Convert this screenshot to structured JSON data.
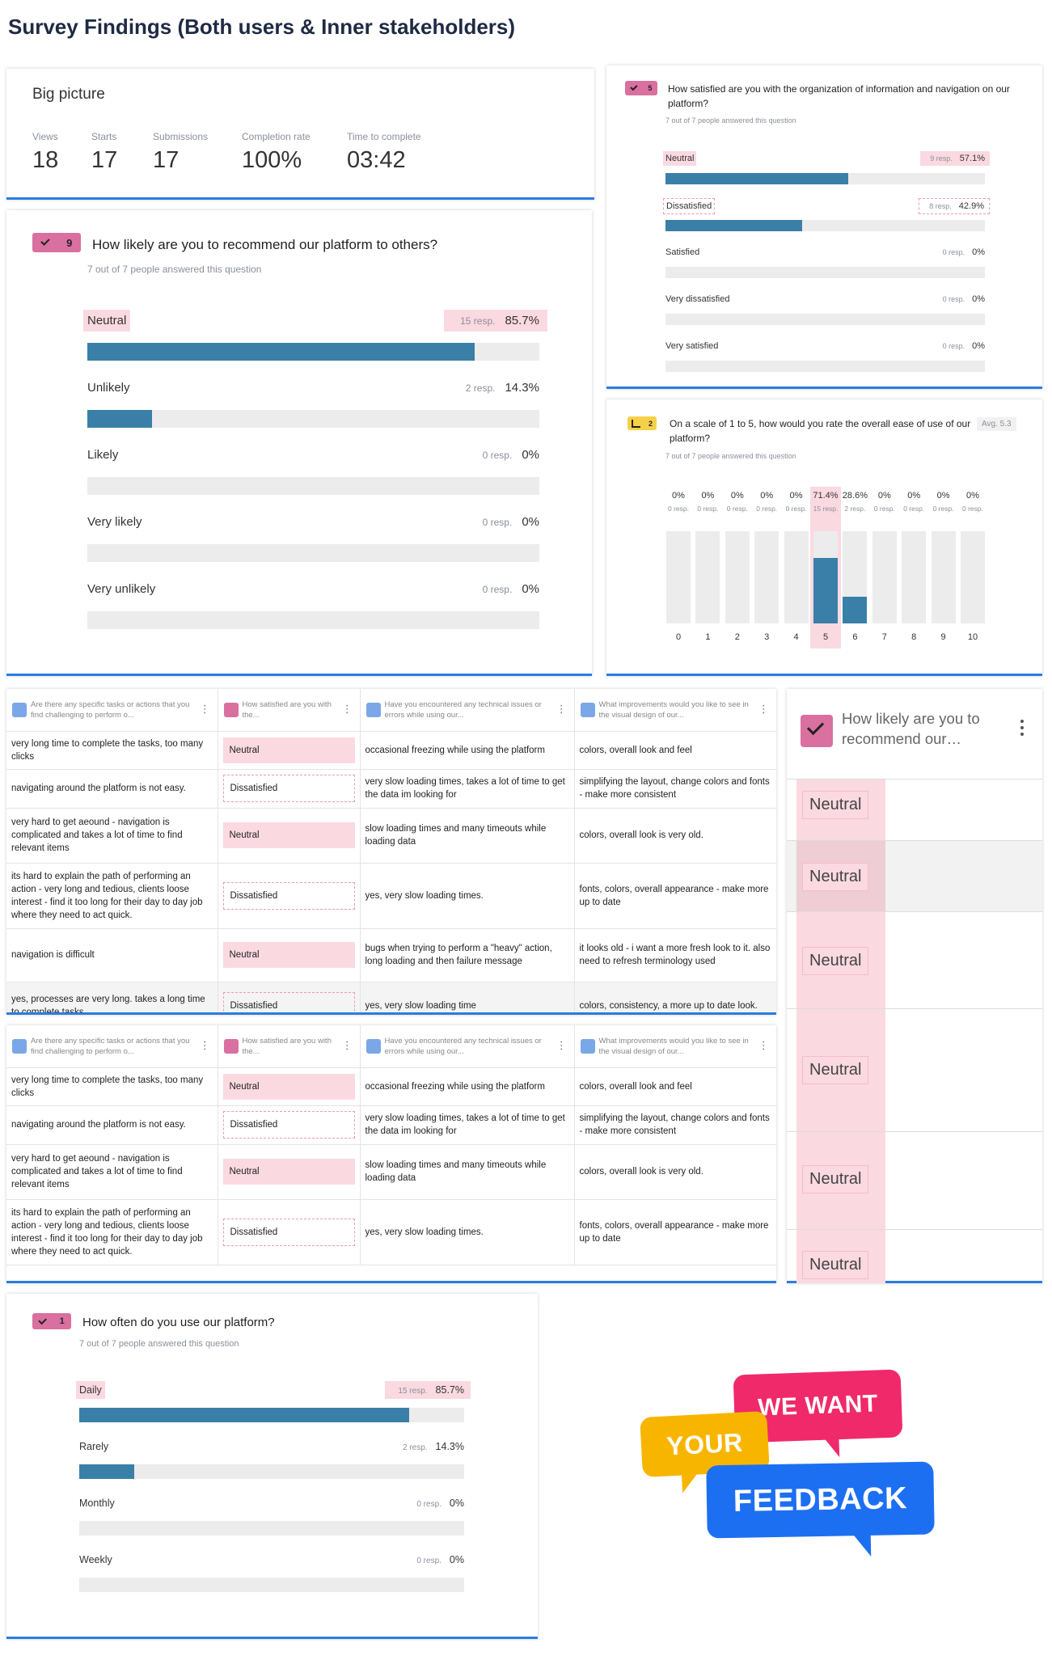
{
  "page_title": "Survey Findings (Both users & Inner stakeholders)",
  "big_picture": {
    "title": "Big picture",
    "stats": [
      {
        "label": "Views",
        "value": "18"
      },
      {
        "label": "Starts",
        "value": "17"
      },
      {
        "label": "Submissions",
        "value": "17"
      },
      {
        "label": "Completion rate",
        "value": "100%"
      },
      {
        "label": "Time to complete",
        "value": "03:42"
      }
    ]
  },
  "questions": [
    {
      "number": "9",
      "title": "How likely are you to recommend our platform to others?",
      "answered": "7 out of 7 people answered this question",
      "options": [
        {
          "label": "Neutral",
          "resp": "15 resp.",
          "percent_label": "85.7%",
          "percent": 85.7,
          "highlight": "fill"
        },
        {
          "label": "Unlikely",
          "resp": "2 resp.",
          "percent_label": "14.3%",
          "percent": 14.3
        },
        {
          "label": "Likely",
          "resp": "0 resp.",
          "percent_label": "0%",
          "percent": 0
        },
        {
          "label": "Very likely",
          "resp": "0 resp.",
          "percent_label": "0%",
          "percent": 0
        },
        {
          "label": "Very unlikely",
          "resp": "0 resp.",
          "percent_label": "0%",
          "percent": 0
        }
      ]
    },
    {
      "number": "5",
      "title": "How satisfied are you with the organization of information and navigation on our platform?",
      "answered": "7 out of 7 people answered this question",
      "options": [
        {
          "label": "Neutral",
          "resp": "9 resp.",
          "percent_label": "57.1%",
          "percent": 57.1,
          "highlight": "fill"
        },
        {
          "label": "Dissatisfied",
          "resp": "8 resp.",
          "percent_label": "42.9%",
          "percent": 42.9,
          "highlight": "dashed"
        },
        {
          "label": "Satisfied",
          "resp": "0 resp.",
          "percent_label": "0%",
          "percent": 0
        },
        {
          "label": "Very dissatisfied",
          "resp": "0 resp.",
          "percent_label": "0%",
          "percent": 0
        },
        {
          "label": "Very satisfied",
          "resp": "0 resp.",
          "percent_label": "0%",
          "percent": 0
        }
      ]
    },
    {
      "number": "1",
      "title": "How often do you use our platform?",
      "answered": "7 out of 7 people answered this question",
      "options": [
        {
          "label": "Daily",
          "resp": "15 resp.",
          "percent_label": "85.7%",
          "percent": 85.7,
          "highlight": "fill"
        },
        {
          "label": "Rarely",
          "resp": "2 resp.",
          "percent_label": "14.3%",
          "percent": 14.3
        },
        {
          "label": "Monthly",
          "resp": "0 resp.",
          "percent_label": "0%",
          "percent": 0
        },
        {
          "label": "Weekly",
          "resp": "0 resp.",
          "percent_label": "0%",
          "percent": 0
        }
      ]
    }
  ],
  "scale_question": {
    "number": "2",
    "title": "On a scale of 1 to 5, how would you rate the overall ease of use of our platform?",
    "avg": "Avg. 5.3",
    "answered": "7 out of 7 people answered this question",
    "columns": [
      {
        "label": "0",
        "percent_label": "0%",
        "percent": 0,
        "resp": "0 resp."
      },
      {
        "label": "1",
        "percent_label": "0%",
        "percent": 0,
        "resp": "0 resp."
      },
      {
        "label": "2",
        "percent_label": "0%",
        "percent": 0,
        "resp": "0 resp."
      },
      {
        "label": "3",
        "percent_label": "0%",
        "percent": 0,
        "resp": "0 resp."
      },
      {
        "label": "4",
        "percent_label": "0%",
        "percent": 0,
        "resp": "0 resp."
      },
      {
        "label": "5",
        "percent_label": "71.4%",
        "percent": 71.4,
        "resp": "15 resp.",
        "highlight": "fill"
      },
      {
        "label": "6",
        "percent_label": "28.6%",
        "percent": 28.6,
        "resp": "2 resp."
      },
      {
        "label": "7",
        "percent_label": "0%",
        "percent": 0,
        "resp": "0 resp."
      },
      {
        "label": "8",
        "percent_label": "0%",
        "percent": 0,
        "resp": "0 resp."
      },
      {
        "label": "9",
        "percent_label": "0%",
        "percent": 0,
        "resp": "0 resp."
      },
      {
        "label": "10",
        "percent_label": "0%",
        "percent": 0,
        "resp": "0 resp."
      }
    ]
  },
  "tables": [
    {
      "headers": [
        "Are there any specific tasks or actions that you find challenging to perform o...",
        "How satisfied are you with the...",
        "Have you encountered any technical issues or errors while using our...",
        "What improvements would you like to see in the visual design of our..."
      ],
      "row_highlights": [
        "fill",
        "dashed",
        "fill",
        "dashed",
        "fill",
        "dashed"
      ],
      "rows": [
        [
          "very long time to complete the tasks, too many clicks",
          "Neutral",
          "occasional freezing while using the platform",
          "colors, overall look and feel"
        ],
        [
          "navigating around the platform is not easy.",
          "Dissatisfied",
          "very slow loading times, takes a lot of time to get the data im looking for",
          "simplifying the layout, change colors and fonts - make more consistent"
        ],
        [
          "very hard to get aeound - navigation is complicated and takes a lot of time to find relevant items",
          "Neutral",
          "slow loading times and many timeouts while loading data",
          "colors, overall look is very old."
        ],
        [
          "its hard to explain the path of performing an action - very long and tedious, clients loose interest - find it too long for their day to day job where they need to act quick.",
          "Dissatisfied",
          "yes, very slow loading times.",
          "fonts, colors, overall appearance - make more up to date"
        ],
        [
          "navigation is difficult",
          "Neutral",
          "bugs when trying to perform a \"heavy\" action, long loading and then failure message",
          "it looks old - i want a more fresh look to it. also need to refresh terminology used"
        ],
        [
          "yes, processes are very long. takes a long time to complete tasks",
          "Dissatisfied",
          "yes, very slow loading time",
          "colors, consistency, a more up to date look."
        ]
      ]
    },
    {
      "headers": [
        "Are there any specific tasks or actions that you find challenging to perform o...",
        "How satisfied are you with the...",
        "Have you encountered any technical issues or errors while using our...",
        "What improvements would you like to see in the visual design of our..."
      ],
      "row_highlights": [
        "fill",
        "dashed",
        "fill",
        "dashed"
      ],
      "rows": [
        [
          "very long time to complete the tasks, too many clicks",
          "Neutral",
          "occasional freezing while using the platform",
          "colors, overall look and feel"
        ],
        [
          "navigating around the platform is not easy.",
          "Dissatisfied",
          "very slow loading times, takes a lot of time to get the data im looking for",
          "simplifying the layout, change colors and fonts - make more consistent"
        ],
        [
          "very hard to get aeound - navigation is complicated and takes a lot of time to find relevant items",
          "Neutral",
          "slow loading times and many timeouts while loading data",
          "colors, overall look is very old."
        ],
        [
          "its hard to explain the path of performing an action - very long and tedious, clients loose interest - find it too long for their day to day job where they need to act quick.",
          "Dissatisfied",
          "yes, very slow loading times.",
          "fonts, colors, overall appearance - make more up to date"
        ]
      ]
    }
  ],
  "neutral_column": {
    "header": "How likely are you to recommend our…",
    "cells": [
      "Neutral",
      "Neutral",
      "Neutral",
      "Neutral",
      "Neutral",
      "Neutral"
    ]
  },
  "feedback_graphic": {
    "lines": [
      "WE WANT",
      "YOUR",
      "FEEDBACK"
    ]
  }
}
